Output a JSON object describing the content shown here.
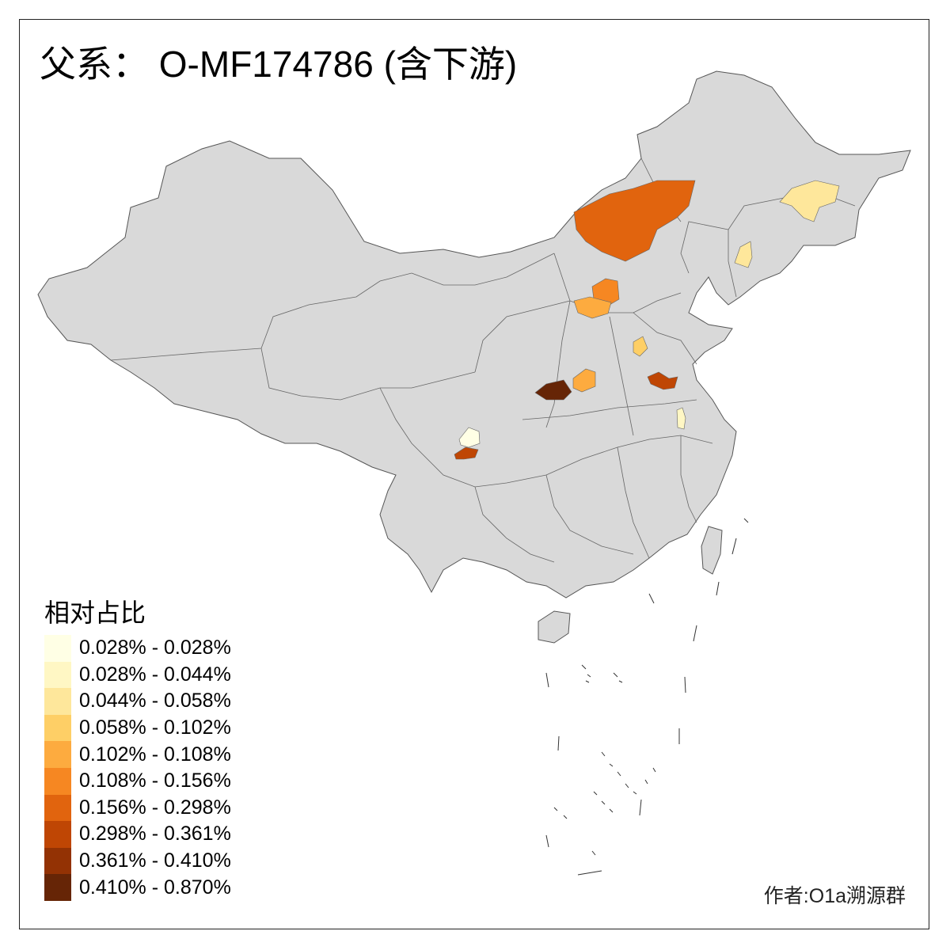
{
  "title": "父系： O-MF174786 (含下游)",
  "legend": {
    "title": "相对占比",
    "items": [
      {
        "label": "0.028% - 0.028%",
        "color": "#FFFFE5"
      },
      {
        "label": "0.028% - 0.044%",
        "color": "#FFF7C4"
      },
      {
        "label": "0.044% - 0.058%",
        "color": "#FEE79B"
      },
      {
        "label": "0.058% - 0.102%",
        "color": "#FECF66"
      },
      {
        "label": "0.102% - 0.108%",
        "color": "#FDAB3F"
      },
      {
        "label": "0.108% - 0.156%",
        "color": "#F68722"
      },
      {
        "label": "0.156% - 0.298%",
        "color": "#E1640E"
      },
      {
        "label": "0.298% - 0.361%",
        "color": "#BF4604"
      },
      {
        "label": "0.361% - 0.410%",
        "color": "#933204"
      },
      {
        "label": "0.410% - 0.870%",
        "color": "#662506"
      }
    ]
  },
  "credit": "作者:O1a溯源群",
  "map_colors": {
    "land": "#D9D9D9",
    "border": "#555555"
  }
}
